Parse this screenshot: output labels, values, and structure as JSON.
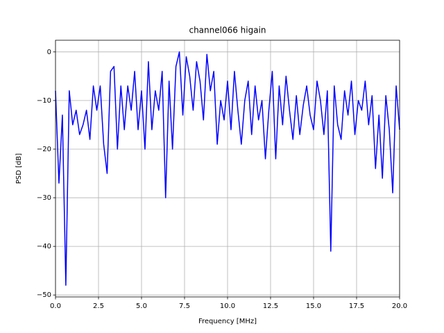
{
  "chart_data": {
    "type": "line",
    "title": "channel066 higain",
    "xlabel": "Frequency [MHz]",
    "ylabel": "PSD [dB]",
    "x": [
      0,
      0.2,
      0.4,
      0.6,
      0.8,
      1,
      1.2,
      1.4,
      1.6,
      1.8,
      2,
      2.2,
      2.4,
      2.6,
      2.8,
      3,
      3.2,
      3.4,
      3.6,
      3.8,
      4,
      4.2,
      4.4,
      4.6,
      4.8,
      5,
      5.2,
      5.4,
      5.6,
      5.8,
      6,
      6.2,
      6.4,
      6.6,
      6.8,
      7,
      7.2,
      7.4,
      7.6,
      7.8,
      8,
      8.2,
      8.4,
      8.6,
      8.8,
      9,
      9.2,
      9.4,
      9.6,
      9.8,
      10,
      10.2,
      10.4,
      10.6,
      10.8,
      11,
      11.2,
      11.4,
      11.6,
      11.8,
      12,
      12.2,
      12.4,
      12.6,
      12.8,
      13,
      13.2,
      13.4,
      13.6,
      13.8,
      14,
      14.2,
      14.4,
      14.6,
      14.8,
      15,
      15.2,
      15.4,
      15.6,
      15.8,
      16,
      16.2,
      16.4,
      16.6,
      16.8,
      17,
      17.2,
      17.4,
      17.6,
      17.8,
      18,
      18.2,
      18.4,
      18.6,
      18.8,
      19,
      19.2,
      19.4,
      19.6,
      19.8,
      20
    ],
    "series": [
      {
        "name": "PSD",
        "color": "#0000ff",
        "values": [
          -8,
          -27,
          -13,
          -48,
          -8,
          -15,
          -12,
          -17,
          -15,
          -12,
          -18,
          -7,
          -12,
          -7,
          -19,
          -25,
          -4,
          -3,
          -20,
          -7,
          -16,
          -7,
          -12,
          -4,
          -16,
          -8,
          -20,
          -2,
          -16,
          -8,
          -12,
          -4,
          -30,
          -6,
          -20,
          -3,
          0,
          -13,
          -1,
          -5,
          -12,
          -2,
          -6,
          -14,
          -0.5,
          -8,
          -4,
          -19,
          -10,
          -14,
          -6,
          -16,
          -4,
          -12,
          -19,
          -10,
          -6,
          -17,
          -7,
          -14,
          -10,
          -22,
          -12,
          -4,
          -22,
          -7,
          -15,
          -5,
          -12,
          -18,
          -9,
          -17,
          -11,
          -7,
          -13,
          -16,
          -6,
          -10,
          -17,
          -8,
          -41,
          -7,
          -15,
          -18,
          -8,
          -13,
          -6,
          -17,
          -10,
          -12,
          -6,
          -15,
          -9,
          -24,
          -13,
          -26,
          -9,
          -16,
          -29,
          -7,
          -16
        ]
      }
    ],
    "xlim": [
      0,
      20
    ],
    "ylim": [
      -50.4,
      2.4
    ],
    "xticks": [
      {
        "value": 0,
        "label": "0.0"
      },
      2.5,
      {
        "value": 5,
        "label": "5.0"
      },
      7.5,
      {
        "value": 10,
        "label": "10.0"
      },
      12.5,
      {
        "value": 15,
        "label": "15.0"
      },
      17.5,
      {
        "value": 20,
        "label": "20.0"
      }
    ],
    "yticks": [
      {
        "value": -50,
        "label": "−50"
      },
      {
        "value": -40,
        "label": "−40"
      },
      {
        "value": -30,
        "label": "−30"
      },
      {
        "value": -20,
        "label": "−20"
      },
      {
        "value": -10,
        "label": "−10"
      },
      0
    ],
    "grid": true
  }
}
